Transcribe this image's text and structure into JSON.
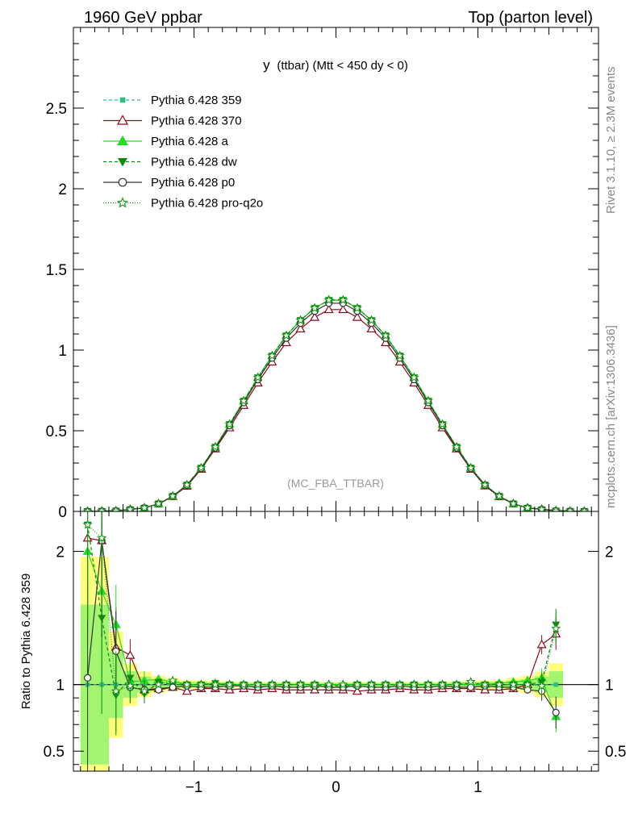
{
  "header": {
    "left": "1960 GeV ppbar",
    "right": "Top (parton level)"
  },
  "side": {
    "rivet": "Rivet 3.1.10, ≥ 2.3M events",
    "mcplots": "mcplots.cern.ch [arXiv:1306.3436]"
  },
  "chart_data": {
    "type": "line",
    "title": "y (ttbar) (Mtt < 450 dy < 0)",
    "title_main": "y",
    "title_sub": "(ttbar) (Mtt < 450 dy < 0)",
    "watermark": "(MC_FBA_TTBAR)",
    "ratio_ylabel": "Ratio to Pythia 6.428 359",
    "xlim": [
      -1.85,
      1.85
    ],
    "ylim": [
      0,
      3.0
    ],
    "ratio_ylim": [
      0.35,
      2.3
    ],
    "xticks": [
      -1,
      0,
      1
    ],
    "xtick_labels": [
      "−1",
      "0",
      "1"
    ],
    "yticks": [
      0.5,
      1,
      1.5,
      2,
      2.5
    ],
    "ytick_labels": [
      "0.5",
      "1",
      "1.5",
      "2",
      "2.5"
    ],
    "ytick_zero_label": "0",
    "ratio_yticks": [
      0.5,
      1,
      2
    ],
    "ratio_ytick_labels": [
      "0.5",
      "1",
      "2"
    ],
    "x": [
      -1.75,
      -1.65,
      -1.55,
      -1.45,
      -1.35,
      -1.25,
      -1.15,
      -1.05,
      -0.95,
      -0.85,
      -0.75,
      -0.65,
      -0.55,
      -0.45,
      -0.35,
      -0.25,
      -0.15,
      -0.05,
      0.05,
      0.15,
      0.25,
      0.35,
      0.45,
      0.55,
      0.65,
      0.75,
      0.85,
      0.95,
      1.05,
      1.15,
      1.25,
      1.35,
      1.45,
      1.55,
      1.65,
      1.75
    ],
    "reference": [
      0.001,
      0.002,
      0.004,
      0.012,
      0.022,
      0.048,
      0.095,
      0.165,
      0.27,
      0.4,
      0.54,
      0.685,
      0.83,
      0.965,
      1.09,
      1.185,
      1.26,
      1.31,
      1.31,
      1.26,
      1.185,
      1.09,
      0.965,
      0.83,
      0.685,
      0.54,
      0.4,
      0.27,
      0.165,
      0.095,
      0.048,
      0.022,
      0.012,
      0.004,
      0.002,
      0.001
    ],
    "ref_band": [
      0.6,
      0.6,
      0.25,
      0.1,
      0.06,
      0.04,
      0.03,
      0.02,
      0.02,
      0.015,
      0.015,
      0.012,
      0.012,
      0.012,
      0.012,
      0.012,
      0.012,
      0.012,
      0.012,
      0.012,
      0.012,
      0.012,
      0.012,
      0.012,
      0.012,
      0.012,
      0.015,
      0.015,
      0.02,
      0.02,
      0.03,
      0.04,
      0.06,
      0.1,
      0.25,
      0.6
    ],
    "ratio_x": [
      -1.75,
      -1.65,
      -1.55,
      -1.45,
      -1.35,
      -1.25,
      -1.15,
      -1.05,
      -0.95,
      -0.85,
      -0.75,
      -0.65,
      -0.55,
      -0.45,
      -0.35,
      -0.25,
      -0.15,
      -0.05,
      0.05,
      0.15,
      0.25,
      0.35,
      0.45,
      0.55,
      0.65,
      0.75,
      0.85,
      0.95,
      1.05,
      1.15,
      1.25,
      1.35,
      1.45,
      1.55
    ],
    "series": [
      {
        "name": "Pythia 6.428 359",
        "color": "#2ebd82",
        "dash": "4,3",
        "marker": "square",
        "scale": [
          1.0,
          1.0,
          1.0,
          1.0,
          1.0,
          1.0,
          1.0,
          1.0,
          1.0,
          1.0,
          1.0,
          1.0,
          1.0,
          1.0,
          1.0,
          1.0,
          1.0,
          1.0,
          1.0,
          1.0,
          1.0,
          1.0,
          1.0,
          1.0,
          1.0,
          1.0,
          1.0,
          1.0,
          1.0,
          1.0,
          1.0,
          1.0,
          1.0,
          1.0,
          1.0,
          1.0
        ],
        "ratio": [
          1.0,
          1.0,
          1.0,
          1.0,
          1.0,
          1.0,
          1.0,
          1.0,
          1.0,
          1.0,
          1.0,
          1.0,
          1.0,
          1.0,
          1.0,
          1.0,
          1.0,
          1.0,
          1.0,
          1.0,
          1.0,
          1.0,
          1.0,
          1.0,
          1.0,
          1.0,
          1.0,
          1.0,
          1.0,
          1.0,
          1.0,
          1.0,
          1.0,
          1.0
        ]
      },
      {
        "name": "Pythia 6.428 370",
        "color": "#8b0a1a",
        "dash": "",
        "marker": "triangle-open",
        "scale": [
          1.0,
          1.0,
          1.0,
          1.1,
          0.96,
          0.97,
          0.97,
          0.95,
          0.97,
          0.97,
          0.96,
          0.96,
          0.96,
          0.96,
          0.96,
          0.955,
          0.955,
          0.955,
          0.955,
          0.955,
          0.955,
          0.96,
          0.96,
          0.96,
          0.96,
          0.96,
          0.97,
          0.97,
          0.96,
          0.96,
          0.97,
          1.0,
          1.2,
          1.35,
          1.0,
          1.0
        ],
        "ratio": [
          2.1,
          2.08,
          1.28,
          1.22,
          0.96,
          0.97,
          0.98,
          0.95,
          0.97,
          0.97,
          0.96,
          0.97,
          0.96,
          0.97,
          0.96,
          0.96,
          0.96,
          0.96,
          0.96,
          0.95,
          0.96,
          0.96,
          0.97,
          0.96,
          0.96,
          0.97,
          0.97,
          0.97,
          0.96,
          0.96,
          0.97,
          1.0,
          1.3,
          1.38
        ]
      },
      {
        "name": "Pythia 6.428 a",
        "color": "#22dd22",
        "dash": "",
        "marker": "triangle",
        "scale": [
          1.0,
          1.0,
          1.0,
          1.0,
          1.0,
          1.0,
          1.0,
          1.0,
          1.0,
          1.0,
          1.0,
          1.0,
          1.0,
          1.0,
          1.0,
          1.0,
          1.0,
          1.0,
          1.0,
          1.0,
          1.0,
          1.0,
          1.0,
          1.0,
          1.0,
          1.0,
          1.0,
          1.0,
          1.0,
          1.0,
          1.0,
          1.0,
          1.0,
          1.0,
          1.0,
          1.0
        ],
        "ratio": [
          2.0,
          1.7,
          1.45,
          1.02,
          1.03,
          1.04,
          1.02,
          1.0,
          1.0,
          1.01,
          1.0,
          1.0,
          1.0,
          1.0,
          1.0,
          1.0,
          1.0,
          1.0,
          1.0,
          1.0,
          1.0,
          1.0,
          1.0,
          1.0,
          1.0,
          1.0,
          1.0,
          1.0,
          1.0,
          1.01,
          1.02,
          1.03,
          1.05,
          0.76
        ]
      },
      {
        "name": "Pythia 6.428 dw",
        "color": "#118811",
        "dash": "4,3",
        "marker": "triangle-down",
        "scale": [
          1.0,
          1.0,
          1.0,
          1.0,
          1.0,
          1.0,
          1.0,
          1.0,
          1.0,
          1.0,
          1.0,
          1.0,
          1.0,
          1.0,
          1.0,
          1.0,
          1.0,
          1.0,
          1.0,
          1.0,
          1.0,
          1.0,
          1.0,
          1.0,
          1.0,
          1.0,
          1.0,
          1.0,
          1.0,
          1.0,
          1.0,
          1.0,
          1.0,
          1.0,
          1.0,
          1.0
        ],
        "ratio": [
          2.2,
          1.5,
          0.92,
          1.05,
          0.93,
          1.02,
          1.0,
          1.0,
          1.0,
          1.01,
          1.0,
          1.0,
          1.0,
          1.0,
          1.0,
          1.0,
          1.0,
          0.99,
          0.99,
          1.0,
          1.0,
          1.0,
          1.0,
          1.0,
          1.0,
          1.0,
          1.0,
          1.01,
          1.0,
          1.0,
          1.0,
          1.0,
          1.02,
          1.45
        ]
      },
      {
        "name": "Pythia 6.428 p0",
        "color": "#333333",
        "dash": "",
        "marker": "circle-open",
        "scale": [
          1.0,
          1.0,
          1.0,
          1.0,
          0.99,
          0.985,
          0.985,
          0.985,
          0.985,
          0.985,
          0.985,
          0.985,
          0.985,
          0.985,
          0.985,
          0.985,
          0.985,
          0.985,
          0.985,
          0.985,
          0.985,
          0.985,
          0.985,
          0.985,
          0.985,
          0.985,
          0.985,
          0.985,
          0.985,
          0.985,
          0.985,
          0.985,
          0.985,
          0.985,
          1.0,
          1.0
        ],
        "ratio": [
          1.05,
          2.08,
          1.25,
          0.98,
          0.96,
          0.96,
          0.98,
          0.99,
          0.98,
          0.98,
          0.99,
          0.99,
          0.98,
          0.99,
          0.98,
          0.98,
          0.99,
          0.98,
          0.98,
          0.99,
          0.98,
          0.98,
          0.99,
          0.98,
          0.98,
          0.99,
          0.98,
          0.98,
          0.99,
          0.98,
          0.98,
          0.96,
          0.95,
          0.79
        ]
      },
      {
        "name": "Pythia 6.428 pro-q2o",
        "color": "#119911",
        "dash": "1,2",
        "marker": "star-open",
        "scale": [
          1.0,
          1.0,
          1.0,
          1.0,
          1.0,
          1.0,
          1.0,
          1.0,
          1.0,
          1.0,
          1.0,
          1.0,
          1.0,
          1.0,
          1.0,
          1.0,
          1.0,
          1.0,
          1.0,
          1.0,
          1.0,
          1.0,
          1.0,
          1.0,
          1.0,
          1.0,
          1.0,
          1.0,
          1.0,
          1.0,
          1.0,
          1.0,
          1.0,
          1.0,
          1.0,
          1.0
        ],
        "ratio": [
          2.2,
          2.1,
          0.95,
          0.99,
          0.95,
          1.0,
          1.03,
          1.0,
          1.0,
          1.0,
          1.0,
          1.0,
          1.0,
          1.0,
          1.0,
          1.0,
          1.0,
          1.0,
          1.0,
          1.0,
          1.0,
          1.0,
          1.0,
          1.0,
          1.0,
          1.0,
          1.0,
          1.02,
          1.0,
          1.0,
          1.0,
          1.0,
          0.99,
          1.42
        ]
      }
    ]
  }
}
